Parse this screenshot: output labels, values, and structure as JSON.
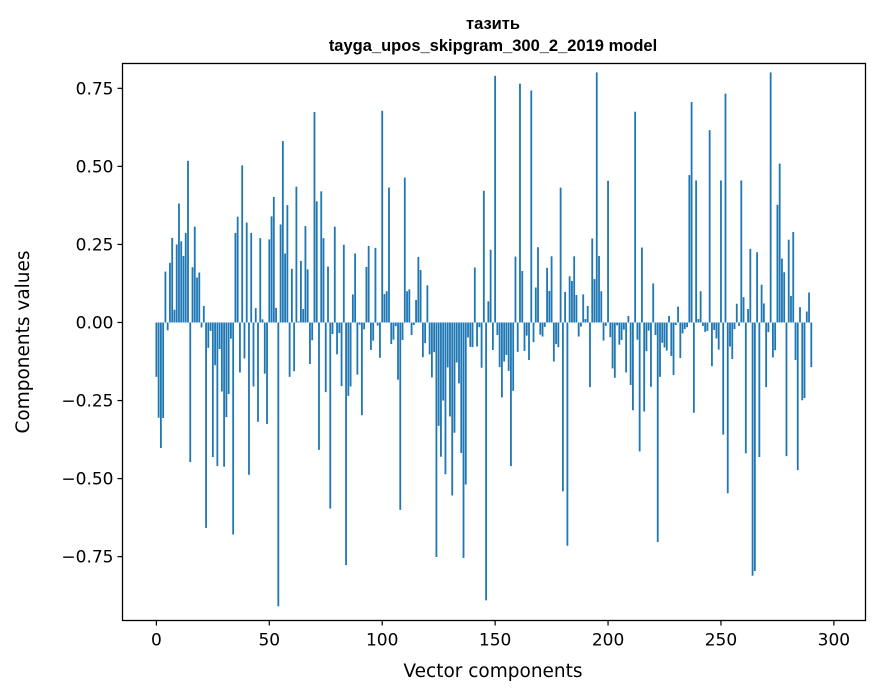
{
  "chart_data": {
    "type": "bar",
    "title": "тазить",
    "subtitle": "tayga_upos_skipgram_300_2_2019 model",
    "xlabel": "Vector components",
    "ylabel": "Components values",
    "xlim": [
      -15.0,
      314.0
    ],
    "ylim": [
      -0.9545,
      0.8295
    ],
    "x_ticks": [
      0,
      50,
      100,
      150,
      200,
      250,
      300
    ],
    "y_ticks": [
      -0.75,
      -0.5,
      -0.25,
      0.0,
      0.25,
      0.5,
      0.75
    ],
    "x_tick_labels": [
      "0",
      "50",
      "100",
      "150",
      "200",
      "250",
      "300"
    ],
    "y_tick_labels": [
      "−0.75",
      "−0.50",
      "−0.25",
      "0.00",
      "0.25",
      "0.50",
      "0.75"
    ],
    "bar_color": "#1f77b4",
    "grid": false,
    "legend": false,
    "values": [
      -0.174,
      -0.305,
      -0.402,
      -0.306,
      0.163,
      -0.025,
      0.191,
      0.271,
      0.041,
      0.25,
      0.381,
      0.26,
      0.213,
      0.287,
      0.518,
      -0.447,
      0.177,
      0.307,
      0.144,
      0.16,
      -0.016,
      0.053,
      -0.658,
      -0.081,
      -0.027,
      -0.431,
      -0.137,
      -0.46,
      -0.085,
      -0.221,
      -0.462,
      -0.303,
      -0.229,
      -0.052,
      -0.679,
      0.287,
      0.339,
      -0.16,
      0.503,
      -0.115,
      0.32,
      -0.488,
      0.287,
      -0.205,
      0.046,
      -0.318,
      0.27,
      0.01,
      -0.164,
      -0.325,
      0.266,
      0.34,
      0.402,
      0.047,
      -0.909,
      0.314,
      0.581,
      0.221,
      0.376,
      -0.174,
      0.172,
      -0.156,
      0.435,
      0.003,
      0.197,
      0.043,
      0.309,
      0.17,
      -0.133,
      -0.057,
      0.674,
      0.388,
      -0.408,
      0.42,
      0.27,
      -0.223,
      0.179,
      -0.596,
      -0.037,
      0.307,
      -0.102,
      -0.034,
      -0.204,
      0.249,
      -0.777,
      -0.235,
      -0.205,
      0.09,
      0.221,
      -0.167,
      -0.007,
      -0.297,
      -0.022,
      0.178,
      0.245,
      -0.088,
      -0.058,
      0.239,
      -0.01,
      -0.113,
      0.678,
      0.091,
      0.1,
      0.432,
      -0.069,
      -0.055,
      -0.012,
      -0.183,
      -0.6,
      -0.056,
      0.464,
      0.1,
      0.106,
      -0.04,
      -0.008,
      0.072,
      0.21,
      0.168,
      -0.111,
      -0.066,
      0.119,
      -0.102,
      -0.176,
      -0.095,
      -0.751,
      -0.331,
      -0.43,
      -0.25,
      -0.486,
      -0.144,
      -0.301,
      -0.554,
      -0.353,
      -0.128,
      -0.195,
      -0.418,
      -0.754,
      -0.519,
      -0.048,
      -0.078,
      -0.079,
      0.176,
      -0.077,
      -0.015,
      -0.145,
      0.422,
      -0.89,
      0.068,
      0.233,
      -0.088,
      0.79,
      -0.04,
      -0.143,
      -0.24,
      -0.125,
      -0.104,
      -0.155,
      -0.46,
      -0.219,
      0.211,
      -0.094,
      0.765,
      0.165,
      -0.091,
      -0.042,
      -0.12,
      0.743,
      -0.063,
      0.112,
      0.241,
      -0.039,
      -0.045,
      -0.014,
      0.175,
      0.101,
      0.212,
      -0.125,
      -0.069,
      -0.079,
      0.432,
      -0.541,
      0.098,
      -0.715,
      0.148,
      0.133,
      0.212,
      0.088,
      -0.045,
      -0.013,
      0.09,
      0.011,
      0.053,
      -0.207,
      0.269,
      0.139,
      0.801,
      0.213,
      0.1,
      -0.058,
      -0.011,
      0.454,
      -0.047,
      -0.147,
      -0.177,
      -0.009,
      -0.071,
      -0.056,
      -0.023,
      -0.16,
      0.021,
      -0.2,
      -0.281,
      0.675,
      -0.055,
      -0.413,
      0.24,
      -0.285,
      -0.092,
      -0.026,
      -0.206,
      0.125,
      -0.04,
      -0.703,
      -0.174,
      -0.065,
      -0.08,
      -0.09,
      0.021,
      -0.107,
      -0.168,
      -0.008,
      0.051,
      -0.114,
      -0.035,
      -0.021,
      -0.015,
      0.472,
      0.706,
      -0.289,
      0.455,
      0.011,
      0.1,
      -0.011,
      -0.03,
      -0.027,
      0.616,
      -0.14,
      -0.024,
      -0.051,
      -0.087,
      0.455,
      -0.359,
      0.733,
      -0.547,
      -0.077,
      -0.117,
      -0.021,
      0.06,
      -0.011,
      0.455,
      0.081,
      -0.419,
      0.043,
      0.236,
      -0.811,
      -0.796,
      0.225,
      -0.431,
      0.121,
      0.061,
      -0.207,
      -0.031,
      0.801,
      -0.112,
      -0.089,
      0.377,
      0.509,
      0.205,
      0.161,
      -0.428,
      0.265,
      0.085,
      0.29,
      -0.12,
      -0.473,
      0.049,
      -0.249,
      -0.242,
      0.035,
      0.096,
      -0.143
    ]
  }
}
